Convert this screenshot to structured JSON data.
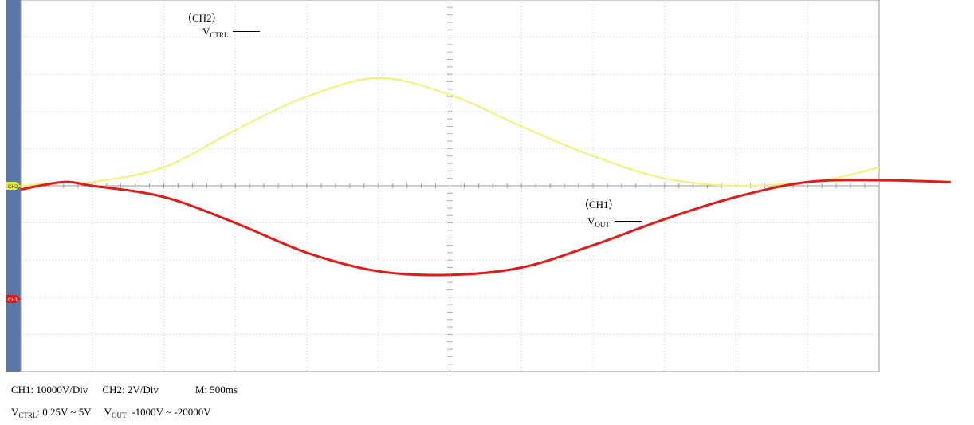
{
  "annotations": {
    "ch2_label": "（CH2）",
    "vctrl_main": "V",
    "vctrl_sub": "CTRL",
    "ch1_label": "（CH1）",
    "vout_main": "V",
    "vout_sub": "OUT"
  },
  "markers": {
    "ch2_marker": "CH2",
    "ch1_marker": "CH1"
  },
  "footer": {
    "ch1_scale": "CH1: 10000V/Div",
    "ch2_scale": "CH2: 2V/Div",
    "timebase": "M: 500ms",
    "vctrl_main": "V",
    "vctrl_sub": "CTRL",
    "vctrl_range": ": 0.25V ~ 5V",
    "vout_main": "V",
    "vout_sub": "OUT",
    "vout_range": ": -1000V ~ -20000V"
  },
  "chart_data": {
    "type": "line",
    "title": "",
    "xlabel": "",
    "ylabel": "",
    "grid": true,
    "x_divisions": 12,
    "y_divisions": 10,
    "x_unit": "div (500ms/div)",
    "series": [
      {
        "name": "CH2",
        "color": "#f2f27a",
        "units": "div from CH2 ground",
        "x": [
          0,
          0.6,
          1,
          2,
          3,
          4,
          5,
          6,
          7,
          8,
          9,
          10,
          11,
          11.5,
          12
        ],
        "values": [
          0,
          0.1,
          0.1,
          0.5,
          1.5,
          2.4,
          2.9,
          2.45,
          1.6,
          0.8,
          0.2,
          0,
          0.1,
          0.25,
          0.5
        ]
      },
      {
        "name": "CH1",
        "color": "#e31a1a",
        "units": "div from CH2 ground",
        "x": [
          0,
          0.6,
          1,
          2,
          3,
          4,
          5,
          6,
          7,
          8,
          9,
          10,
          11,
          12,
          13
        ],
        "values": [
          -0.1,
          0.1,
          0,
          -0.3,
          -1.0,
          -1.8,
          -2.3,
          -2.4,
          -2.2,
          -1.6,
          -0.9,
          -0.3,
          0.1,
          0.15,
          0.1
        ]
      }
    ]
  }
}
